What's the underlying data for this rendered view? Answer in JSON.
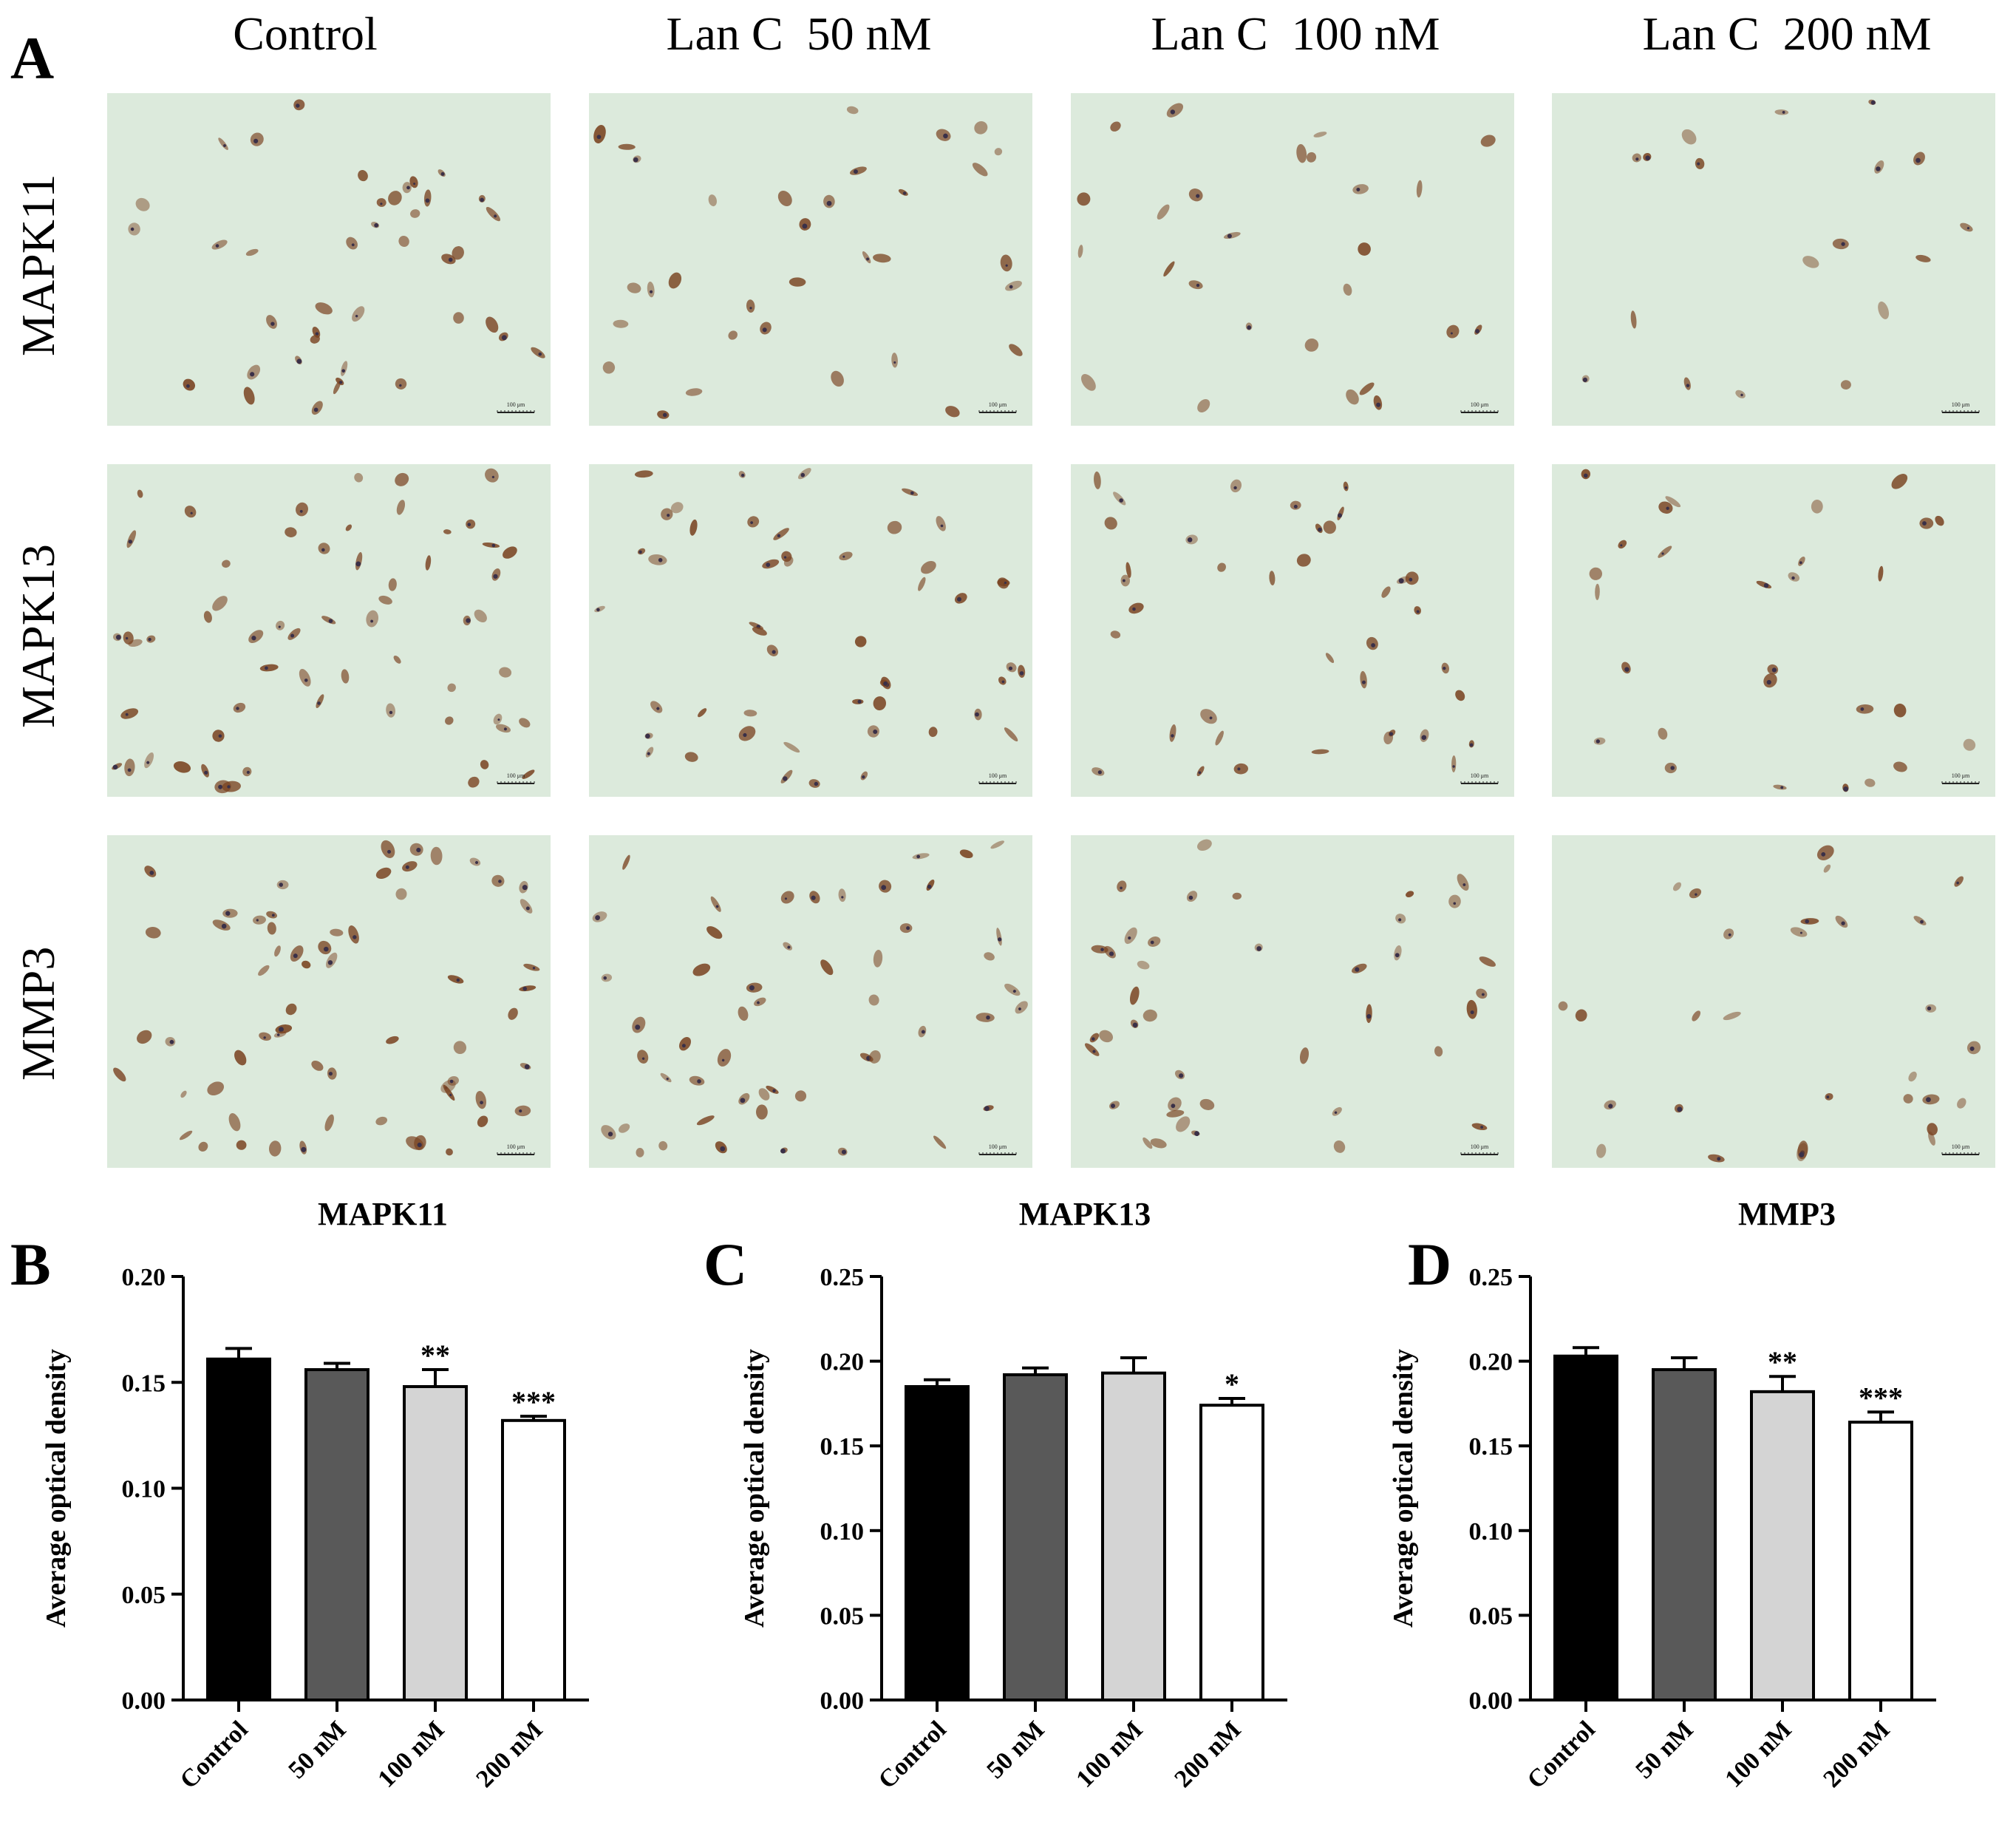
{
  "panel_a": {
    "letter": "A",
    "columns": [
      "Control",
      "Lan C  50 nM",
      "Lan C  100 nM",
      "Lan C  200 nM"
    ],
    "rows": [
      "MAPK11",
      "MAPK13",
      "MMP3"
    ],
    "scale_bar_label": "100 μm",
    "colors": {
      "background": "#dceadc",
      "cell_stain": "#7a4422",
      "nucleus": "#3a3048"
    }
  },
  "chart_data": [
    {
      "type": "bar",
      "letter": "B",
      "title": "MAPK11",
      "ylabel": "Average optical density",
      "categories": [
        "Control",
        "50 nM",
        "100 nM",
        "200 nM"
      ],
      "values": [
        0.161,
        0.156,
        0.148,
        0.132
      ],
      "errors": [
        0.005,
        0.003,
        0.008,
        0.002
      ],
      "significance": [
        "",
        "",
        "**",
        "***"
      ],
      "ylim": [
        0,
        0.2
      ],
      "yticks": [
        "0.00",
        "0.05",
        "0.10",
        "0.15",
        "0.20"
      ],
      "bar_colors": [
        "#000000",
        "#595959",
        "#d4d4d4",
        "#ffffff"
      ]
    },
    {
      "type": "bar",
      "letter": "C",
      "title": "MAPK13",
      "ylabel": "Average optical density",
      "categories": [
        "Control",
        "50 nM",
        "100 nM",
        "200 nM"
      ],
      "values": [
        0.185,
        0.192,
        0.193,
        0.174
      ],
      "errors": [
        0.004,
        0.004,
        0.009,
        0.004
      ],
      "significance": [
        "",
        "",
        "",
        "*"
      ],
      "ylim": [
        0,
        0.25
      ],
      "yticks": [
        "0.00",
        "0.05",
        "0.10",
        "0.15",
        "0.20",
        "0.25"
      ],
      "bar_colors": [
        "#000000",
        "#595959",
        "#d4d4d4",
        "#ffffff"
      ]
    },
    {
      "type": "bar",
      "letter": "D",
      "title": "MMP3",
      "ylabel": "Average optical density",
      "categories": [
        "Control",
        "50 nM",
        "100 nM",
        "200 nM"
      ],
      "values": [
        0.203,
        0.195,
        0.182,
        0.164
      ],
      "errors": [
        0.005,
        0.007,
        0.009,
        0.006
      ],
      "significance": [
        "",
        "",
        "**",
        "***"
      ],
      "ylim": [
        0,
        0.25
      ],
      "yticks": [
        "0.00",
        "0.05",
        "0.10",
        "0.15",
        "0.20",
        "0.25"
      ],
      "bar_colors": [
        "#000000",
        "#595959",
        "#d4d4d4",
        "#ffffff"
      ]
    }
  ]
}
